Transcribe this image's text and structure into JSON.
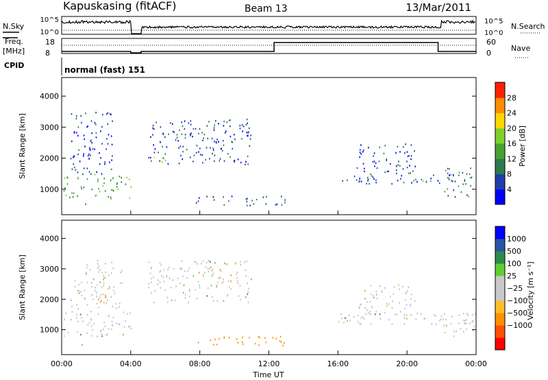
{
  "header": {
    "title": "Kapuskasing (fitACF)",
    "beam": "Beam 13",
    "date": "13/Mar/2011"
  },
  "summary_panels": {
    "nsky_label": "N.Sky",
    "nsky_ticks": [
      "10^5",
      "10^0"
    ],
    "nsearch_label": "N.Search",
    "nsearch_ticks": [
      "10^5",
      "10^0"
    ],
    "freq_label_line1": "Freq.",
    "freq_label_line2": "[MHz]",
    "freq_ticks": [
      "18",
      "8"
    ],
    "nave_label": "Nave",
    "nave_ticks": [
      "60",
      "0"
    ],
    "cpid_label": "CPID",
    "cpid_value": "normal (fast) 151"
  },
  "colors": {
    "power_scale": [
      "#0000ff",
      "#1f3fa8",
      "#2e7a4e",
      "#46a12f",
      "#7fd12a",
      "#ffd700",
      "#ff8c00",
      "#ff2000"
    ],
    "velocity_scale": [
      "#ff0000",
      "#ff5000",
      "#ff9000",
      "#ffbe28",
      "#c8c8c8",
      "#c8c8c8",
      "#5fcf2f",
      "#2e8a50",
      "#2a54a6",
      "#0000ff"
    ],
    "ground_scatter": "#c0c0c0"
  },
  "chart_data": [
    {
      "type": "heatmap",
      "name": "power",
      "ylabel": "Slant Range [km]",
      "xlabel": "",
      "ylim": [
        180,
        4600
      ],
      "y_ticks": [
        "1000",
        "2000",
        "3000",
        "4000"
      ],
      "colorbar_label": "Power [dB]",
      "colorbar_ticks": [
        "4",
        "8",
        "12",
        "16",
        "20",
        "24",
        "28"
      ],
      "colorbar_range": [
        0,
        30
      ],
      "echo_regions": [
        {
          "t": [
            0.0,
            4.0
          ],
          "r": [
            700,
            1500
          ],
          "level": 14
        },
        {
          "t": [
            0.5,
            3.0
          ],
          "r": [
            1500,
            3500
          ],
          "level": 4
        },
        {
          "t": [
            1.0,
            1.5
          ],
          "r": [
            450,
            600
          ],
          "level": 10
        },
        {
          "t": [
            5.0,
            11.0
          ],
          "r": [
            1800,
            3300
          ],
          "level": 6
        },
        {
          "t": [
            5.0,
            6.0
          ],
          "r": [
            1850,
            2100
          ],
          "level": 18
        },
        {
          "t": [
            7.5,
            13.0
          ],
          "r": [
            500,
            800
          ],
          "level": 8
        },
        {
          "t": [
            16.0,
            23.0
          ],
          "r": [
            1200,
            1500
          ],
          "level": 6
        },
        {
          "t": [
            17.0,
            20.5
          ],
          "r": [
            1500,
            2500
          ],
          "level": 5
        },
        {
          "t": [
            20.0,
            22.5
          ],
          "r": [
            1250,
            1400
          ],
          "level": 14
        },
        {
          "t": [
            22.0,
            24.0
          ],
          "r": [
            750,
            1700
          ],
          "level": 10
        }
      ]
    },
    {
      "type": "heatmap",
      "name": "velocity",
      "ylabel": "Slant Range [km]",
      "xlabel": "Time UT",
      "ylim": [
        180,
        4600
      ],
      "y_ticks": [
        "1000",
        "2000",
        "3000",
        "4000"
      ],
      "x_ticks": [
        "00:00",
        "04:00",
        "08:00",
        "12:00",
        "16:00",
        "20:00",
        "00:00"
      ],
      "xlim_hours": [
        0,
        24
      ],
      "colorbar_label": "Velocity [m s⁻¹]",
      "colorbar_ticks": [
        "1000",
        "500",
        "100",
        "25",
        "−25",
        "−100",
        "−500",
        "−1000"
      ],
      "echo_regions": [
        {
          "t": [
            0.0,
            4.0
          ],
          "r": [
            800,
            1600
          ],
          "level": 0
        },
        {
          "t": [
            0.5,
            3.5
          ],
          "r": [
            1600,
            3300
          ],
          "level": 0
        },
        {
          "t": [
            1.0,
            1.5
          ],
          "r": [
            500,
            600
          ],
          "level": 60
        },
        {
          "t": [
            2.0,
            2.6
          ],
          "r": [
            1900,
            2300
          ],
          "level": -150
        },
        {
          "t": [
            5.0,
            11.0
          ],
          "r": [
            1900,
            3300
          ],
          "level": 0
        },
        {
          "t": [
            7.5,
            13.0
          ],
          "r": [
            500,
            800
          ],
          "level": -200
        },
        {
          "t": [
            16.0,
            23.0
          ],
          "r": [
            1200,
            1600
          ],
          "level": 0
        },
        {
          "t": [
            17.0,
            20.5
          ],
          "r": [
            1500,
            2500
          ],
          "level": 0
        },
        {
          "t": [
            22.0,
            24.0
          ],
          "r": [
            800,
            1600
          ],
          "level": 0
        }
      ]
    }
  ]
}
